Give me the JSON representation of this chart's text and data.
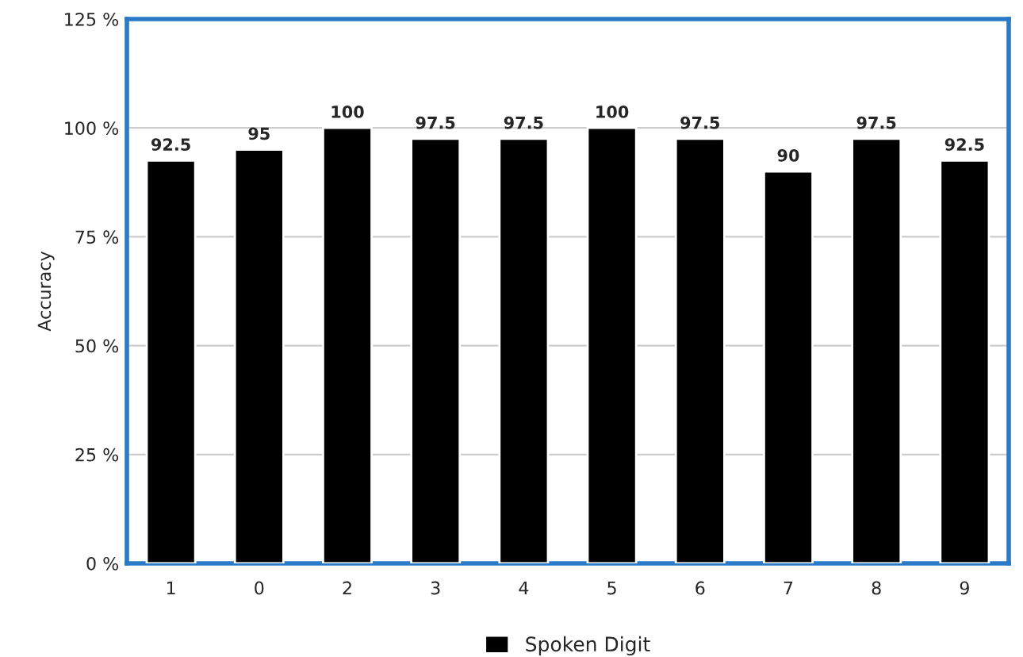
{
  "chart_data": {
    "type": "bar",
    "ylabel": "Accuracy",
    "categories": [
      "1",
      "0",
      "2",
      "3",
      "4",
      "5",
      "6",
      "7",
      "8",
      "9"
    ],
    "series": [
      {
        "name": "Spoken Digit",
        "color": "#000000",
        "values": [
          92.5,
          95,
          100,
          97.5,
          97.5,
          100,
          97.5,
          90,
          97.5,
          92.5
        ]
      }
    ],
    "ylim": [
      0,
      125
    ],
    "yticks": [
      {
        "value": 0,
        "label": "0 %"
      },
      {
        "value": 25,
        "label": "25 %"
      },
      {
        "value": 50,
        "label": "50 %"
      },
      {
        "value": 75,
        "label": "75 %"
      },
      {
        "value": 100,
        "label": "100 %"
      },
      {
        "value": 125,
        "label": "125 %"
      }
    ],
    "grid": "y",
    "legend": "bottom",
    "data_labels": true
  }
}
